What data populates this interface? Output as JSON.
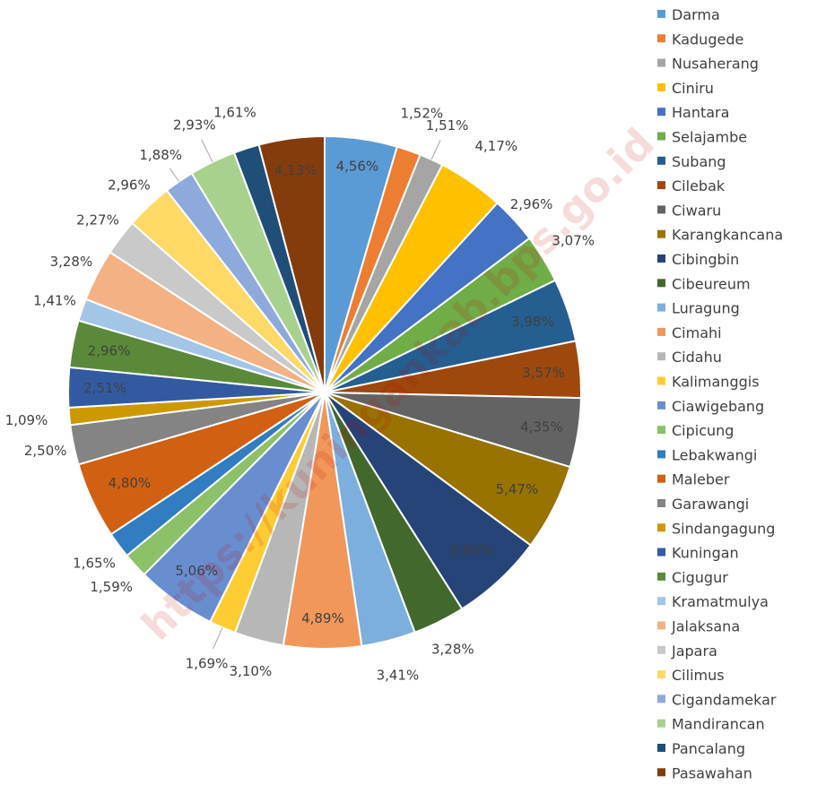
{
  "chart_data": {
    "type": "pie",
    "legend_position": "right",
    "categories": [
      "Darma",
      "Kadugede",
      "Nusaherang",
      "Ciniru",
      "Hantara",
      "Selajambe",
      "Subang",
      "Cilebak",
      "Ciwaru",
      "Karangkancana",
      "Cibingbin",
      "Cibeureum",
      "Luragung",
      "Cimahi",
      "Cidahu",
      "Kalimanggis",
      "Ciawigebang",
      "Cipicung",
      "Lebakwangi",
      "Maleber",
      "Garawangi",
      "Sindangagung",
      "Kuningan",
      "Cigugur",
      "Kramatmulya",
      "Jalaksana",
      "Japara",
      "Cilimus",
      "Cigandamekar",
      "Mandirancan",
      "Pancalang",
      "Pasawahan"
    ],
    "values": [
      4.56,
      1.52,
      1.51,
      4.17,
      2.96,
      3.07,
      3.98,
      3.57,
      4.35,
      5.47,
      5.84,
      3.28,
      3.41,
      4.89,
      3.1,
      1.69,
      5.06,
      1.59,
      1.65,
      4.8,
      2.5,
      1.09,
      2.51,
      2.96,
      1.41,
      3.28,
      2.27,
      2.96,
      1.88,
      2.93,
      1.61,
      4.13
    ],
    "value_labels": [
      "4,56%",
      "1,52%",
      "1,51%",
      "4,17%",
      "2,96%",
      "3,07%",
      "3,98%",
      "3,57%",
      "4,35%",
      "5,47%",
      "5,84%",
      "3,28%",
      "3,41%",
      "4,89%",
      "3,10%",
      "1,69%",
      "5,06%",
      "1,59%",
      "1,65%",
      "4,80%",
      "2,50%",
      "1,09%",
      "2,51%",
      "2,96%",
      "1,41%",
      "3,28%",
      "2,27%",
      "2,96%",
      "1,88%",
      "2,93%",
      "1,61%",
      "4,13%"
    ],
    "colors": [
      "#5B9BD5",
      "#ED7D31",
      "#A5A5A5",
      "#FFC000",
      "#4472C4",
      "#70AD47",
      "#255E91",
      "#9E480E",
      "#636363",
      "#997300",
      "#264478",
      "#43682B",
      "#7CAFDD",
      "#F1975A",
      "#B7B7B7",
      "#FFCD33",
      "#698ED0",
      "#8CC168",
      "#327DC2",
      "#D26012",
      "#848484",
      "#CC9A00",
      "#335AA1",
      "#5A8A39",
      "#A3C6E7",
      "#F4B183",
      "#C9C9C9",
      "#FFD966",
      "#8EA9DB",
      "#A9D18E",
      "#1F4E79",
      "#843C0C"
    ],
    "watermark": "https://kuningankab.bps.go.id"
  }
}
